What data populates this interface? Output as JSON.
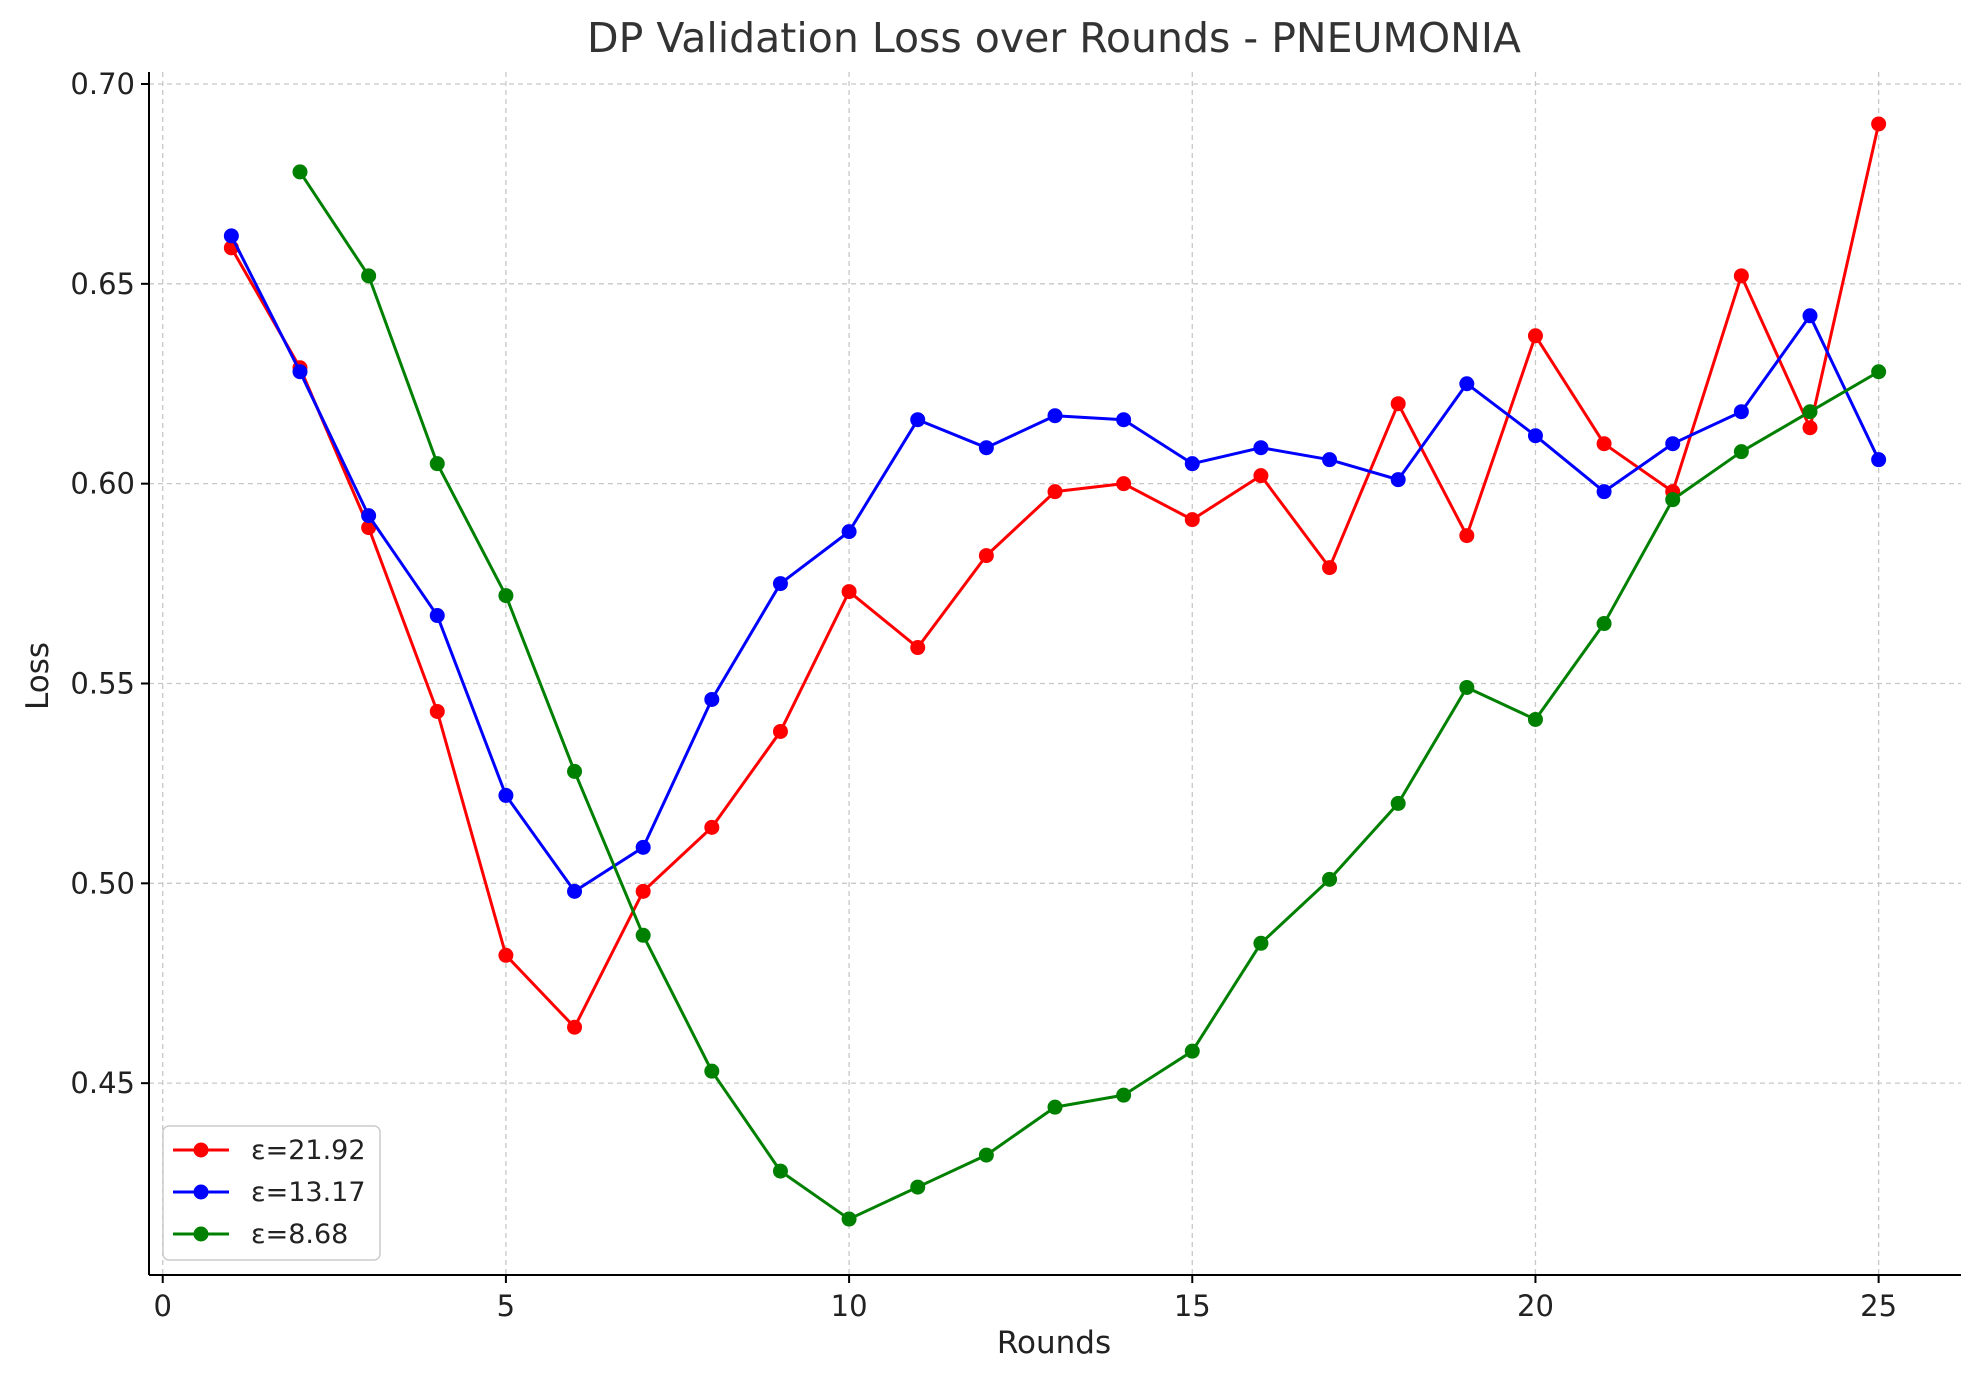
{
  "chart_data": {
    "type": "line",
    "title": "DP Validation Loss over Rounds - PNEUMONIA",
    "xlabel": "Rounds",
    "ylabel": "Loss",
    "xlim": [
      -0.2,
      26.2
    ],
    "ylim": [
      0.402,
      0.703
    ],
    "xticks": [
      0,
      5,
      10,
      15,
      20,
      25
    ],
    "xtick_labels": [
      "0",
      "5",
      "10",
      "15",
      "20",
      "25"
    ],
    "yticks": [
      0.45,
      0.5,
      0.55,
      0.6,
      0.65,
      0.7
    ],
    "ytick_labels": [
      "0.45",
      "0.50",
      "0.55",
      "0.60",
      "0.65",
      "0.70"
    ],
    "grid": true,
    "legend_position": "bottom-left",
    "series": [
      {
        "name": "ε=21.92",
        "color": "#ff0000",
        "x": [
          1,
          2,
          3,
          4,
          5,
          6,
          7,
          8,
          9,
          10,
          11,
          12,
          13,
          14,
          15,
          16,
          17,
          18,
          19,
          20,
          21,
          22,
          23,
          24,
          25
        ],
        "values": [
          0.659,
          0.629,
          0.589,
          0.543,
          0.482,
          0.464,
          0.498,
          0.514,
          0.538,
          0.573,
          0.559,
          0.582,
          0.598,
          0.6,
          0.591,
          0.602,
          0.579,
          0.62,
          0.587,
          0.637,
          0.61,
          0.598,
          0.652,
          0.614,
          0.69
        ]
      },
      {
        "name": "ε=13.17",
        "color": "#0000ff",
        "x": [
          1,
          2,
          3,
          4,
          5,
          6,
          7,
          8,
          9,
          10,
          11,
          12,
          13,
          14,
          15,
          16,
          17,
          18,
          19,
          20,
          21,
          22,
          23,
          24,
          25
        ],
        "values": [
          0.662,
          0.628,
          0.592,
          0.567,
          0.522,
          0.498,
          0.509,
          0.546,
          0.575,
          0.588,
          0.616,
          0.609,
          0.617,
          0.616,
          0.605,
          0.609,
          0.606,
          0.601,
          0.625,
          0.612,
          0.598,
          0.61,
          0.618,
          0.642,
          0.606
        ]
      },
      {
        "name": "ε=8.68",
        "color": "#008000",
        "x": [
          2,
          3,
          4,
          5,
          6,
          7,
          8,
          9,
          10,
          11,
          12,
          13,
          14,
          15,
          16,
          17,
          18,
          19,
          20,
          21,
          22,
          23,
          24,
          25
        ],
        "values": [
          0.678,
          0.652,
          0.605,
          0.572,
          0.528,
          0.487,
          0.453,
          0.428,
          0.416,
          0.424,
          0.432,
          0.444,
          0.447,
          0.458,
          0.485,
          0.501,
          0.52,
          0.549,
          0.541,
          0.565,
          0.596,
          0.608,
          0.618,
          0.628
        ]
      }
    ]
  }
}
